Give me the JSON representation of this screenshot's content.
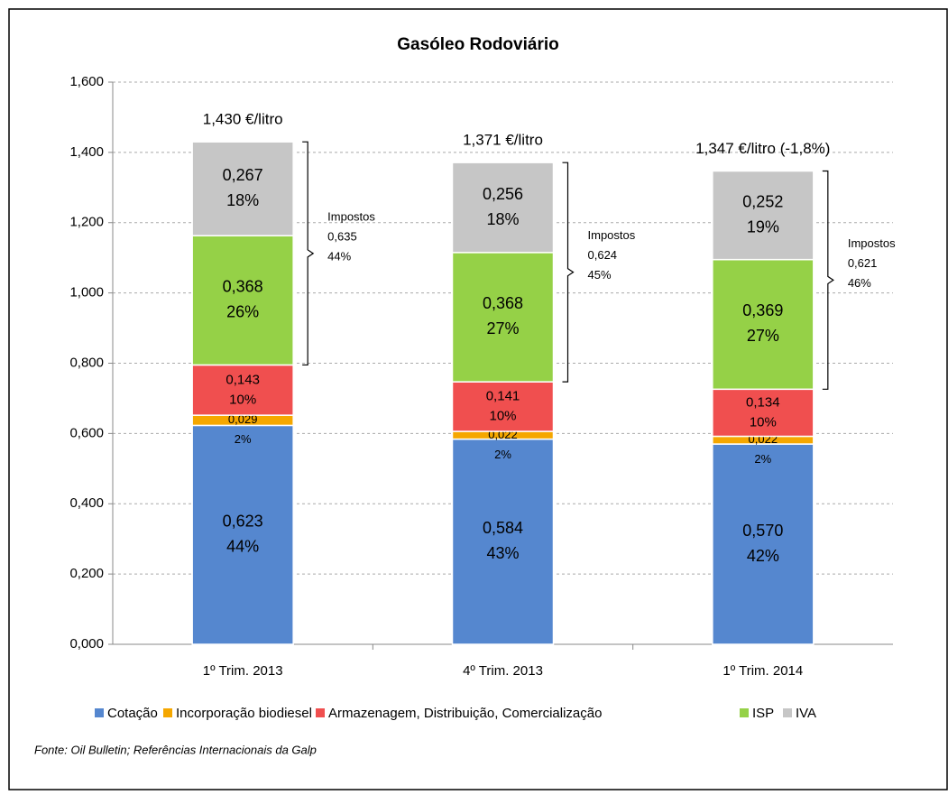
{
  "chart_data": {
    "type": "stacked_bar",
    "title": "Gasóleo Rodoviário",
    "categories": [
      "1º Trim. 2013",
      "4º Trim. 2013",
      "1º Trim. 2014"
    ],
    "series": [
      {
        "name": "Cotação",
        "color": "#5587cf",
        "values": [
          0.623,
          0.584,
          0.57
        ],
        "value_labels": [
          "0,623",
          "0,584",
          "0,570"
        ],
        "percents": [
          44,
          43,
          42
        ],
        "percent_labels": [
          "44%",
          "43%",
          "42%"
        ]
      },
      {
        "name": "Incorporação biodiesel",
        "color": "#f5a700",
        "values": [
          0.029,
          0.022,
          0.022
        ],
        "value_labels": [
          "0,029",
          "0,022",
          "0,022"
        ],
        "percents": [
          2,
          2,
          2
        ],
        "percent_labels": [
          "2%",
          "2%",
          "2%"
        ]
      },
      {
        "name": "Armazenagem, Distribuição, Comercialização",
        "color": "#f04f4f",
        "values": [
          0.143,
          0.141,
          0.134
        ],
        "value_labels": [
          "0,143",
          "0,141",
          "0,134"
        ],
        "percents": [
          10,
          10,
          10
        ],
        "percent_labels": [
          "10%",
          "10%",
          "10%"
        ]
      },
      {
        "name": "ISP",
        "color": "#95d147",
        "values": [
          0.368,
          0.368,
          0.369
        ],
        "value_labels": [
          "0,368",
          "0,368",
          "0,369"
        ],
        "percents": [
          26,
          27,
          27
        ],
        "percent_labels": [
          "26%",
          "27%",
          "27%"
        ]
      },
      {
        "name": "IVA",
        "color": "#c6c6c6",
        "values": [
          0.267,
          0.256,
          0.252
        ],
        "value_labels": [
          "0,267",
          "0,256",
          "0,252"
        ],
        "percents": [
          18,
          18,
          19
        ],
        "percent_labels": [
          "18%",
          "18%",
          "19%"
        ]
      }
    ],
    "total_labels": [
      "1,430 €/litro",
      "1,371 €/litro",
      "1,347 €/litro (-1,8%)"
    ],
    "taxes": [
      {
        "label": "Impostos",
        "value_label": "0,635",
        "percent_label": "44%"
      },
      {
        "label": "Impostos",
        "value_label": "0,624",
        "percent_label": "45%"
      },
      {
        "label": "Impostos",
        "value_label": "0,621",
        "percent_label": "46%"
      }
    ],
    "ylim": [
      0,
      1.6
    ],
    "yticks": [
      {
        "value": 0,
        "label": "0,000"
      },
      {
        "value": 0.2,
        "label": "0,200"
      },
      {
        "value": 0.4,
        "label": "0,400"
      },
      {
        "value": 0.6,
        "label": "0,600"
      },
      {
        "value": 0.8,
        "label": "0,800"
      },
      {
        "value": 1.0,
        "label": "1,000"
      },
      {
        "value": 1.2,
        "label": "1,200"
      },
      {
        "value": 1.4,
        "label": "1,400"
      },
      {
        "value": 1.6,
        "label": "1,600"
      }
    ],
    "grid": true,
    "legend": "bottom",
    "source": "Fonte: Oil Bulletin; Referências Internacionais da Galp"
  }
}
